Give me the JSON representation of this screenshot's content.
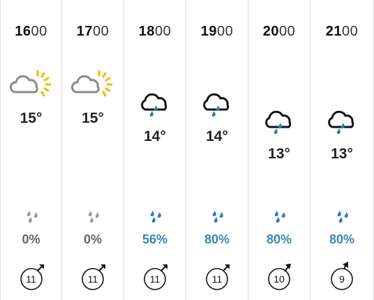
{
  "forecast": [
    {
      "hour": "16",
      "minutes": "00",
      "icon": "sun-cloud-icon",
      "temp": "15°",
      "precip": "0%",
      "precip_color": "#666666",
      "drops_color": "#9a9a9a",
      "wind_speed": "11"
    },
    {
      "hour": "17",
      "minutes": "00",
      "icon": "sun-cloud-icon",
      "temp": "15°",
      "precip": "0%",
      "precip_color": "#666666",
      "drops_color": "#9a9a9a",
      "wind_speed": "11"
    },
    {
      "hour": "18",
      "minutes": "00",
      "icon": "rain-cloud-icon",
      "temp": "14°",
      "precip": "56%",
      "precip_color": "#3a86b5",
      "drops_color": "#2c7bb6",
      "wind_speed": "11"
    },
    {
      "hour": "19",
      "minutes": "00",
      "icon": "rain-cloud-icon",
      "temp": "14°",
      "precip": "80%",
      "precip_color": "#3a86b5",
      "drops_color": "#2c7bb6",
      "wind_speed": "11"
    },
    {
      "hour": "20",
      "minutes": "00",
      "icon": "rain-cloud-icon",
      "temp": "13°",
      "precip": "80%",
      "precip_color": "#3a86b5",
      "drops_color": "#2c7bb6",
      "wind_speed": "10"
    },
    {
      "hour": "21",
      "minutes": "00",
      "icon": "rain-cloud-icon",
      "temp": "13°",
      "precip": "80%",
      "precip_color": "#3a86b5",
      "drops_color": "#2c7bb6",
      "wind_speed": "9"
    }
  ]
}
